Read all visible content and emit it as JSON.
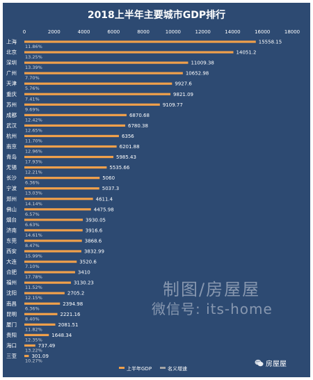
{
  "chart_data": {
    "type": "bar",
    "orientation": "horizontal",
    "title": "2018上半年主要城市GDP排行",
    "xlim": [
      0,
      18000
    ],
    "xticks": [
      0,
      2000,
      4000,
      6000,
      8000,
      10000,
      12000,
      14000,
      16000,
      18000
    ],
    "grid": false,
    "legend_position": "bottom",
    "categories": [
      "上海",
      "北京",
      "深圳",
      "广州",
      "天津",
      "重庆",
      "苏州",
      "成都",
      "武汉",
      "杭州",
      "南京",
      "青岛",
      "无锡",
      "长沙",
      "宁波",
      "郑州",
      "佛山",
      "烟台",
      "济南",
      "东莞",
      "西安",
      "大连",
      "合肥",
      "福州",
      "沈阳",
      "南昌",
      "昆明",
      "厦门",
      "贵阳",
      "海口",
      "三亚"
    ],
    "series": [
      {
        "name": "上半年GDP",
        "color": "#f0a04b",
        "values": [
          15558.15,
          14051.2,
          11009.38,
          10652.98,
          9927.6,
          9821.09,
          9109.77,
          6870.68,
          6780.38,
          6356,
          6201.88,
          5985.43,
          5535.66,
          5060,
          5037.3,
          4611.4,
          4475.98,
          3930.05,
          3916.6,
          3868.6,
          3832.99,
          3520.6,
          3410,
          3130.23,
          2705.2,
          2394.98,
          2221.16,
          2081.51,
          1648.34,
          737.49,
          301.09
        ],
        "labels": [
          "15558.15",
          "14051.2",
          "11009.38",
          "10652.98",
          "9927.6",
          "9821.09",
          "9109.77",
          "6870.68",
          "6780.38",
          "6356",
          "6201.88",
          "5985.43",
          "5535.66",
          "5060",
          "5037.3",
          "4611.4",
          "4475.98",
          "3930.05",
          "3916.6",
          "3868.6",
          "3832.99",
          "3520.6",
          "3410",
          "3130.23",
          "2705.2",
          "2394.98",
          "2221.16",
          "2081.51",
          "1648.34",
          "737.49",
          "301.09"
        ]
      },
      {
        "name": "名义增速",
        "color": "#a5a5a5",
        "labels": [
          "11.86%",
          "13.25%",
          "13.39%",
          "7.70%",
          "5.76%",
          "7.41%",
          "9.69%",
          "12.42%",
          "12.65%",
          "11.70%",
          "12.96%",
          "17.93%",
          "12.21%",
          "6.36%",
          "13.03%",
          "14.14%",
          "6.57%",
          "6.63%",
          "14.61%",
          "8.47%",
          "15.99%",
          "7.10%",
          "17.78%",
          "11.52%",
          "12.15%",
          "6.36%",
          "8.40%",
          "11.82%",
          "12.35%",
          "13.22%",
          "10.27%"
        ]
      }
    ]
  },
  "watermark": {
    "line1": "制图/房屋屋",
    "line2": "微信号: its-home"
  },
  "brand": {
    "icon": "wechat-icon",
    "text": "房屋屋"
  }
}
